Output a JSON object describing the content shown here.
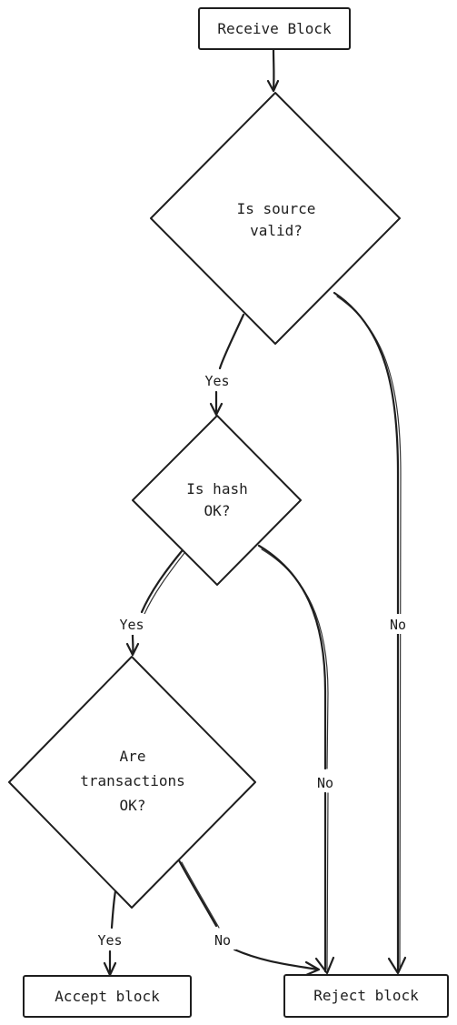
{
  "nodes": {
    "receive_block": "Receive Block",
    "source_valid": [
      "Is source",
      "valid?"
    ],
    "hash_ok": [
      "Is hash",
      "OK?"
    ],
    "transactions_ok": [
      "Are",
      "transactions",
      "OK?"
    ],
    "accept_block": "Accept block",
    "reject_block": "Reject block"
  },
  "edges": {
    "source_yes": "Yes",
    "source_no": "No",
    "hash_yes": "Yes",
    "hash_no": "No",
    "transactions_yes": "Yes",
    "transactions_no": "No"
  }
}
